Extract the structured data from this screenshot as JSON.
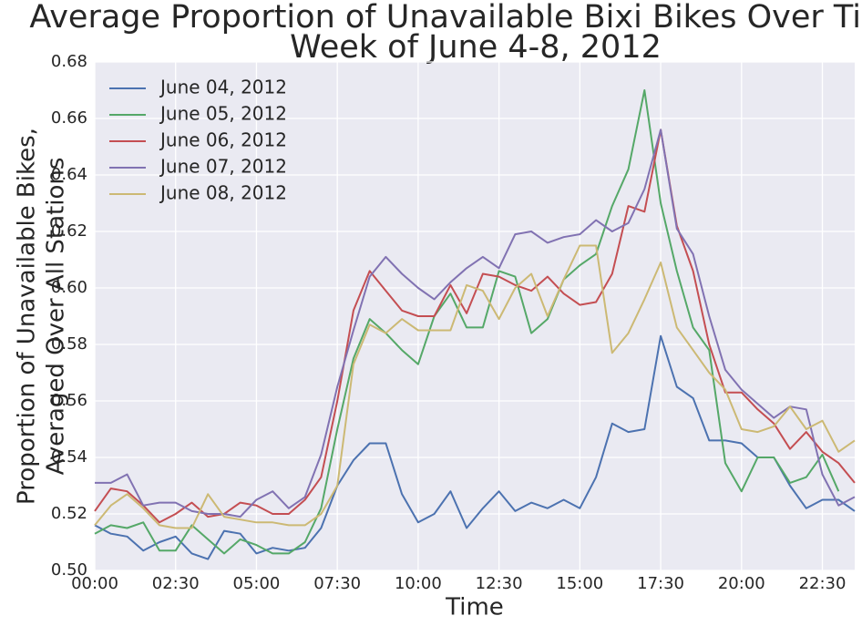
{
  "chart_data": {
    "type": "line",
    "title": [
      "Average Proportion of Unavailable Bixi Bikes Over Time,",
      "Week of June 4-8, 2012"
    ],
    "xlabel": "Time",
    "ylabel": [
      "Proportion of Unavailable Bikes,",
      "Averaged Over All Stations"
    ],
    "x": [
      0,
      0.5,
      1,
      1.5,
      2,
      2.5,
      3,
      3.5,
      4,
      4.5,
      5,
      5.5,
      6,
      6.5,
      7,
      7.5,
      8,
      8.5,
      9,
      9.5,
      10,
      10.5,
      11,
      11.5,
      12,
      12.5,
      13,
      13.5,
      14,
      14.5,
      15,
      15.5,
      16,
      16.5,
      17,
      17.5,
      18,
      18.5,
      19,
      19.5,
      20,
      20.5,
      21,
      21.5,
      22,
      22.5,
      23,
      23.5
    ],
    "xlim": [
      0,
      23.5
    ],
    "xticks": [
      {
        "value": 0,
        "label": "00:00"
      },
      {
        "value": 2.5,
        "label": "02:30"
      },
      {
        "value": 5,
        "label": "05:00"
      },
      {
        "value": 7.5,
        "label": "07:30"
      },
      {
        "value": 10,
        "label": "10:00"
      },
      {
        "value": 12.5,
        "label": "12:30"
      },
      {
        "value": 15,
        "label": "15:00"
      },
      {
        "value": 17.5,
        "label": "17:30"
      },
      {
        "value": 20,
        "label": "20:00"
      },
      {
        "value": 22.5,
        "label": "22:30"
      }
    ],
    "ylim": [
      0.5,
      0.68
    ],
    "yticks": [
      {
        "value": 0.5,
        "label": "0.50"
      },
      0.52,
      0.54,
      0.56,
      0.58,
      {
        "value": 0.6,
        "label": "0.60"
      },
      0.62,
      0.64,
      0.66,
      0.68
    ],
    "grid": true,
    "legend": "upper left",
    "series": [
      {
        "name": "June 04, 2012",
        "color": "#4c72b0",
        "values": [
          0.516,
          0.513,
          0.512,
          0.507,
          0.51,
          0.512,
          0.506,
          0.504,
          0.514,
          0.513,
          0.506,
          0.508,
          0.507,
          0.508,
          0.515,
          0.53,
          0.539,
          0.545,
          0.545,
          0.527,
          0.517,
          0.52,
          0.528,
          0.515,
          0.522,
          0.528,
          0.521,
          0.524,
          0.522,
          0.525,
          0.522,
          0.533,
          0.552,
          0.549,
          0.55,
          0.583,
          0.565,
          0.561,
          0.546,
          0.546,
          0.545,
          0.54,
          0.54,
          0.53,
          0.522,
          0.525,
          0.525,
          0.521
        ]
      },
      {
        "name": "June 05, 2012",
        "color": "#55a868",
        "values": [
          0.513,
          0.516,
          0.515,
          0.517,
          0.507,
          0.507,
          0.516,
          0.511,
          0.506,
          0.511,
          0.509,
          0.506,
          0.506,
          0.51,
          0.522,
          0.55,
          0.575,
          0.589,
          0.584,
          0.578,
          0.573,
          0.59,
          0.598,
          0.586,
          0.586,
          0.606,
          0.604,
          0.584,
          0.589,
          0.603,
          0.608,
          0.612,
          0.629,
          0.642,
          0.67,
          0.63,
          0.606,
          0.586,
          0.578,
          0.538,
          0.528,
          0.54,
          0.54,
          0.531,
          0.533,
          0.541,
          0.528,
          null
        ]
      },
      {
        "name": "June 06, 2012",
        "color": "#c44e52",
        "values": [
          0.521,
          0.529,
          0.528,
          0.523,
          0.517,
          0.52,
          0.524,
          0.519,
          0.52,
          0.524,
          0.523,
          0.52,
          0.52,
          0.525,
          0.533,
          0.56,
          0.592,
          0.606,
          0.599,
          0.592,
          0.59,
          0.59,
          0.601,
          0.591,
          0.605,
          0.604,
          0.601,
          0.599,
          0.604,
          0.598,
          0.594,
          0.595,
          0.605,
          0.629,
          0.627,
          0.656,
          0.622,
          0.606,
          0.58,
          0.563,
          0.563,
          0.557,
          0.552,
          0.543,
          0.549,
          0.542,
          0.538,
          0.531
        ]
      },
      {
        "name": "June 07, 2012",
        "color": "#8172b2",
        "values": [
          0.531,
          0.531,
          0.534,
          0.523,
          0.524,
          0.524,
          0.521,
          0.52,
          0.52,
          0.519,
          0.525,
          0.528,
          0.522,
          0.526,
          0.541,
          0.565,
          0.585,
          0.604,
          0.611,
          0.605,
          0.6,
          0.596,
          0.602,
          0.607,
          0.611,
          0.607,
          0.619,
          0.62,
          0.616,
          0.618,
          0.619,
          0.624,
          0.62,
          0.623,
          0.635,
          0.656,
          0.621,
          0.612,
          0.59,
          0.571,
          0.564,
          0.559,
          0.554,
          0.558,
          0.557,
          0.534,
          0.523,
          0.526
        ]
      },
      {
        "name": "June 08, 2012",
        "color": "#ccb974",
        "values": [
          0.516,
          0.523,
          0.527,
          0.522,
          0.516,
          0.515,
          0.515,
          0.527,
          0.519,
          0.518,
          0.517,
          0.517,
          0.516,
          0.516,
          0.52,
          0.53,
          0.573,
          0.587,
          0.584,
          0.589,
          0.585,
          0.585,
          0.585,
          0.601,
          0.599,
          0.589,
          0.6,
          0.605,
          0.59,
          0.603,
          0.615,
          0.615,
          0.577,
          0.584,
          0.596,
          0.609,
          0.586,
          0.578,
          0.57,
          0.564,
          0.55,
          0.549,
          0.551,
          0.558,
          0.55,
          0.553,
          0.542,
          0.546
        ]
      }
    ]
  }
}
